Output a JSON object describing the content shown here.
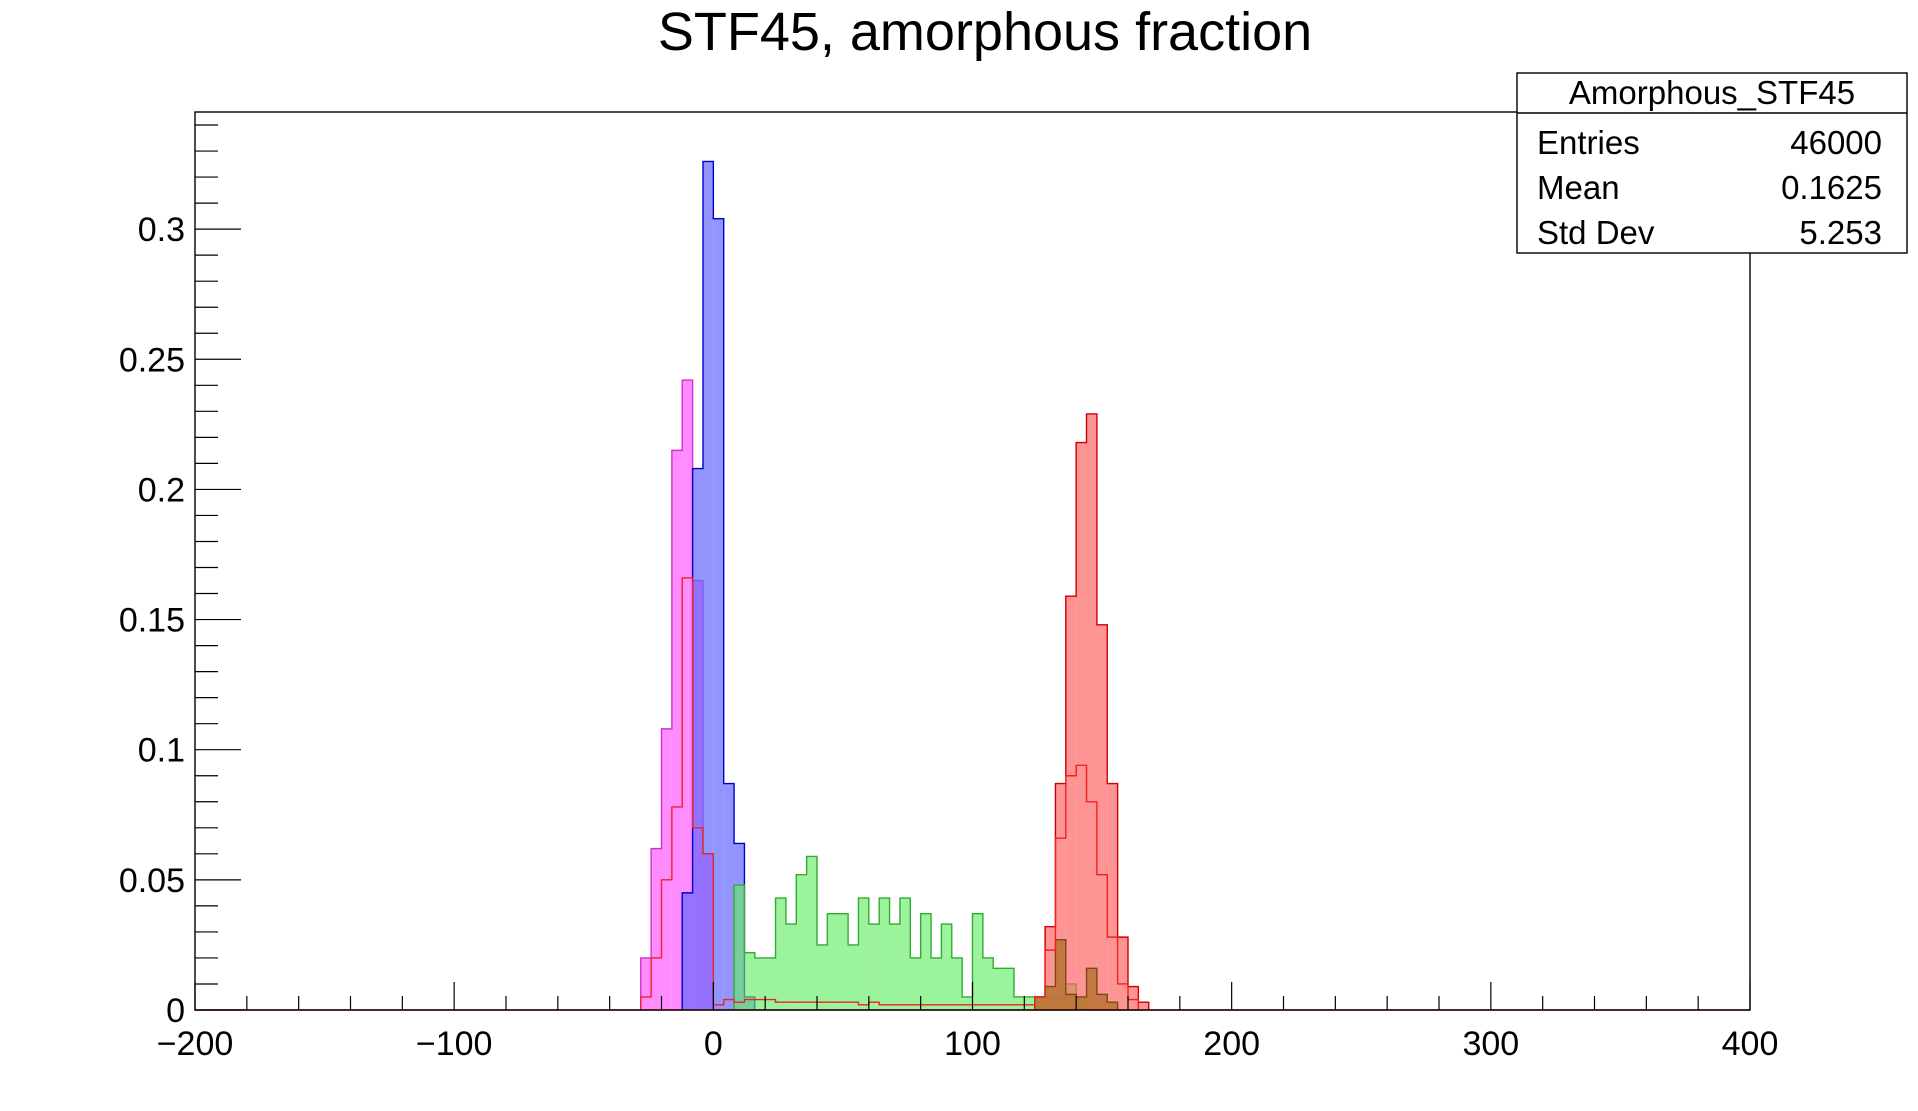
{
  "chart_data": {
    "type": "histogram",
    "title": "STF45, amorphous fraction",
    "xlabel": "",
    "ylabel": "",
    "xlim": [
      -200,
      400
    ],
    "ylim": [
      0,
      0.345
    ],
    "x_ticks": [
      -200,
      -100,
      0,
      100,
      200,
      300,
      400
    ],
    "x_tick_labels": [
      "−200",
      "−100",
      "0",
      "100",
      "200",
      "300",
      "400"
    ],
    "y_ticks": [
      0,
      0.05,
      0.1,
      0.15,
      0.2,
      0.25,
      0.3
    ],
    "y_tick_labels": [
      "0",
      "0.05",
      "0.1",
      "0.15",
      "0.2",
      "0.25",
      "0.3"
    ],
    "grid": false,
    "bin_width": 4,
    "stats_box": {
      "name": "Amorphous_STF45",
      "rows": [
        {
          "label": "Entries",
          "value": "46000"
        },
        {
          "label": "Mean",
          "value": "0.1625"
        },
        {
          "label": "Std Dev",
          "value": "5.253"
        }
      ]
    },
    "series": [
      {
        "color": "#e8e8e8",
        "fill": "#ff66ff",
        "stroke": "#cc33cc",
        "opacity": 0.75,
        "x": [
          -28,
          -24,
          -20,
          -16,
          -12,
          -8,
          -4
        ],
        "values": [
          0.02,
          0.062,
          0.108,
          0.215,
          0.242,
          0.165,
          0.06
        ]
      },
      {
        "fill": "#6666ff",
        "stroke": "#0000cc",
        "opacity": 0.7,
        "x": [
          -12,
          -8,
          -4,
          0,
          4,
          8,
          12
        ],
        "values": [
          0.045,
          0.208,
          0.326,
          0.304,
          0.087,
          0.064,
          0.005
        ]
      },
      {
        "fill": "#66ee66",
        "stroke": "#33aa33",
        "opacity": 0.65,
        "x": [
          8,
          12,
          16,
          20,
          24,
          28,
          32,
          36,
          40,
          44,
          48,
          52,
          56,
          60,
          64,
          68,
          72,
          76,
          80,
          84,
          88,
          92,
          96,
          100,
          104,
          108,
          112,
          116,
          120,
          124,
          128,
          132,
          136,
          140
        ],
        "values": [
          0.048,
          0.022,
          0.02,
          0.02,
          0.043,
          0.033,
          0.052,
          0.059,
          0.025,
          0.037,
          0.037,
          0.025,
          0.043,
          0.033,
          0.043,
          0.033,
          0.043,
          0.02,
          0.037,
          0.02,
          0.033,
          0.02,
          0.005,
          0.037,
          0.02,
          0.016,
          0.016,
          0.005,
          0.005,
          0.005,
          0.005,
          0.005,
          0.01,
          0.005
        ]
      },
      {
        "fill": "#ff6666",
        "stroke": "#cc0000",
        "opacity": 0.7,
        "x": [
          124,
          128,
          132,
          136,
          140,
          144,
          148,
          152,
          156,
          160,
          164
        ],
        "values": [
          0.005,
          0.032,
          0.087,
          0.159,
          0.218,
          0.229,
          0.148,
          0.087,
          0.028,
          0.009,
          0.003
        ]
      },
      {
        "fill": "#b87333",
        "stroke": "#7a4a1a",
        "opacity": 0.85,
        "x": [
          124,
          128,
          132,
          136,
          140,
          144,
          148,
          152
        ],
        "values": [
          0.005,
          0.009,
          0.027,
          0.006,
          0.005,
          0.016,
          0.006,
          0.003
        ]
      },
      {
        "fill": "none",
        "stroke": "#ee2222",
        "opacity": 1,
        "x": [
          -28,
          -24,
          -20,
          -16,
          -12,
          -8,
          -4,
          0,
          4,
          8,
          12,
          16,
          20,
          24,
          28,
          32,
          36,
          40,
          44,
          48,
          52,
          56,
          60,
          64,
          68,
          72,
          76,
          80,
          84,
          88,
          92,
          96,
          100,
          104,
          108,
          112,
          116,
          120,
          124,
          128,
          132,
          136,
          140,
          144,
          148,
          152,
          156,
          160
        ],
        "values": [
          0.005,
          0.02,
          0.05,
          0.078,
          0.166,
          0.07,
          0.06,
          0.002,
          0.004,
          0.003,
          0.004,
          0.004,
          0.004,
          0.003,
          0.003,
          0.003,
          0.003,
          0.003,
          0.003,
          0.003,
          0.003,
          0.002,
          0.003,
          0.002,
          0.002,
          0.002,
          0.002,
          0.002,
          0.002,
          0.002,
          0.002,
          0.002,
          0.002,
          0.002,
          0.002,
          0.002,
          0.002,
          0.002,
          0.005,
          0.023,
          0.066,
          0.09,
          0.094,
          0.08,
          0.052,
          0.028,
          0.01,
          0.004
        ]
      }
    ]
  }
}
